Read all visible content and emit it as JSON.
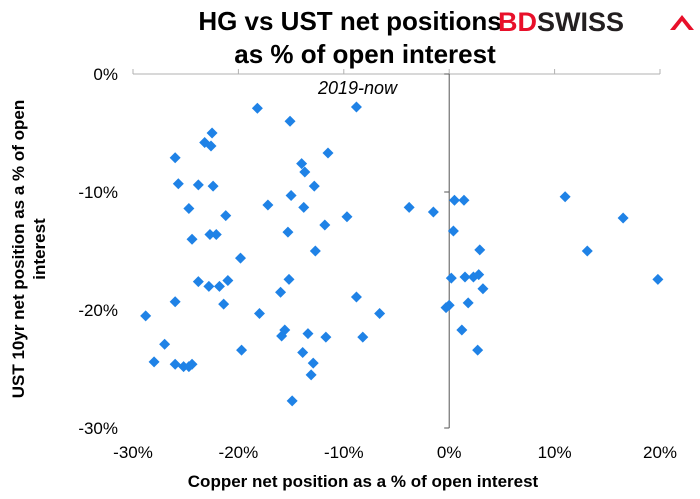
{
  "logo": {
    "text_part1": "BD",
    "text_part2": "SWISS",
    "brand_color": "#e8102a",
    "dark_color": "#231f20"
  },
  "chart_data": {
    "type": "scatter",
    "title_line1": "HG vs UST net positions",
    "title_line2": "as % of open interest",
    "subtitle": "2019-now",
    "xlabel": "Copper net position as a % of open interest",
    "ylabel_line1": "UST 10yr  net position as a % of open",
    "ylabel_line2": "interest",
    "xlim": [
      -30,
      20
    ],
    "ylim": [
      -30,
      0
    ],
    "x_ticks": [
      -30,
      -20,
      -10,
      0,
      10,
      20
    ],
    "x_tick_labels": [
      "-30%",
      "-20%",
      "-10%",
      "0%",
      "10%",
      "20%"
    ],
    "y_ticks": [
      0,
      -10,
      -20,
      -30
    ],
    "y_tick_labels": [
      "0%",
      "-10%",
      "-20%",
      "-30%"
    ],
    "marker_color": "#1f82e6",
    "grid": false,
    "points": [
      [
        -18.2,
        -2.9
      ],
      [
        -8.8,
        -2.8
      ],
      [
        -15.1,
        -4.0
      ],
      [
        -22.5,
        -5.0
      ],
      [
        -23.2,
        -5.8
      ],
      [
        -22.6,
        -6.1
      ],
      [
        -11.5,
        -6.7
      ],
      [
        -26.0,
        -7.1
      ],
      [
        -14.0,
        -7.6
      ],
      [
        -13.7,
        -8.3
      ],
      [
        -25.7,
        -9.3
      ],
      [
        -23.8,
        -9.4
      ],
      [
        -22.4,
        -9.5
      ],
      [
        -12.8,
        -9.5
      ],
      [
        -15.0,
        -10.3
      ],
      [
        -17.2,
        -11.1
      ],
      [
        -13.8,
        -11.3
      ],
      [
        -24.7,
        -11.4
      ],
      [
        -9.7,
        -12.1
      ],
      [
        -21.2,
        -12.0
      ],
      [
        -11.8,
        -12.8
      ],
      [
        -22.7,
        -13.6
      ],
      [
        -22.1,
        -13.6
      ],
      [
        -15.3,
        -13.4
      ],
      [
        -24.4,
        -14.0
      ],
      [
        -12.7,
        -15.0
      ],
      [
        -19.8,
        -15.6
      ],
      [
        -15.2,
        -17.4
      ],
      [
        -23.8,
        -17.6
      ],
      [
        -21.0,
        -17.5
      ],
      [
        -22.8,
        -18.0
      ],
      [
        -21.8,
        -18.0
      ],
      [
        -16.0,
        -18.5
      ],
      [
        -8.8,
        -18.9
      ],
      [
        -26.0,
        -19.3
      ],
      [
        -21.4,
        -19.5
      ],
      [
        -18.0,
        -20.3
      ],
      [
        -6.6,
        -20.3
      ],
      [
        -28.8,
        -20.5
      ],
      [
        -15.6,
        -21.7
      ],
      [
        -15.9,
        -22.2
      ],
      [
        -13.4,
        -22.0
      ],
      [
        -11.7,
        -22.3
      ],
      [
        -8.2,
        -22.3
      ],
      [
        -27.0,
        -22.9
      ],
      [
        -19.7,
        -23.4
      ],
      [
        -13.9,
        -23.6
      ],
      [
        -28.0,
        -24.4
      ],
      [
        -26.0,
        -24.6
      ],
      [
        -24.4,
        -24.6
      ],
      [
        -25.2,
        -24.8
      ],
      [
        -24.7,
        -24.8
      ],
      [
        -12.9,
        -24.5
      ],
      [
        -13.1,
        -25.5
      ],
      [
        -14.9,
        -27.7
      ],
      [
        -3.8,
        -11.3
      ],
      [
        -1.5,
        -11.7
      ],
      [
        0.5,
        -10.7
      ],
      [
        1.4,
        -10.7
      ],
      [
        0.4,
        -13.3
      ],
      [
        2.9,
        -14.9
      ],
      [
        0.2,
        -17.3
      ],
      [
        1.5,
        -17.2
      ],
      [
        2.3,
        -17.2
      ],
      [
        2.8,
        -17.0
      ],
      [
        3.2,
        -18.2
      ],
      [
        1.8,
        -19.4
      ],
      [
        0.0,
        -19.6
      ],
      [
        -0.3,
        -19.8
      ],
      [
        1.2,
        -21.7
      ],
      [
        2.7,
        -23.4
      ],
      [
        11.0,
        -10.4
      ],
      [
        16.5,
        -12.2
      ],
      [
        13.1,
        -15.0
      ],
      [
        19.8,
        -17.4
      ]
    ]
  }
}
